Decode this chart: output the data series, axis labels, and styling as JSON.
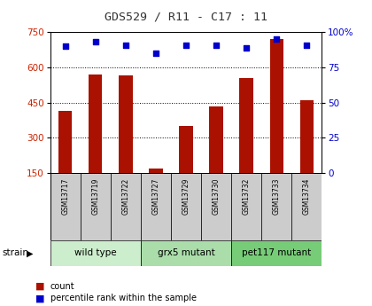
{
  "title": "GDS529 / R11 - C17 : 11",
  "samples": [
    "GSM13717",
    "GSM13719",
    "GSM13722",
    "GSM13727",
    "GSM13729",
    "GSM13730",
    "GSM13732",
    "GSM13733",
    "GSM13734"
  ],
  "counts": [
    415,
    570,
    565,
    170,
    350,
    435,
    555,
    720,
    460
  ],
  "percentiles": [
    90,
    93,
    91,
    85,
    91,
    91,
    89,
    95,
    91
  ],
  "ylim_left": [
    150,
    750
  ],
  "ylim_right": [
    0,
    100
  ],
  "yticks_left": [
    150,
    300,
    450,
    600,
    750
  ],
  "yticks_right": [
    0,
    25,
    50,
    75,
    100
  ],
  "grid_values": [
    300,
    450,
    600
  ],
  "bar_color": "#AA1100",
  "dot_color": "#0000CC",
  "groups": [
    {
      "label": "wild type",
      "start": 0,
      "end": 3,
      "color": "#CCEECC"
    },
    {
      "label": "grx5 mutant",
      "start": 3,
      "end": 6,
      "color": "#AADDAA"
    },
    {
      "label": "pet117 mutant",
      "start": 6,
      "end": 9,
      "color": "#77CC77"
    }
  ],
  "strain_label": "strain",
  "legend_count": "count",
  "legend_percentile": "percentile rank within the sample",
  "title_color": "#333333",
  "left_axis_color": "#CC2200",
  "right_axis_color": "#0000CC",
  "bar_width": 0.45,
  "background_plot": "#FFFFFF",
  "tick_label_area_color": "#CCCCCC"
}
